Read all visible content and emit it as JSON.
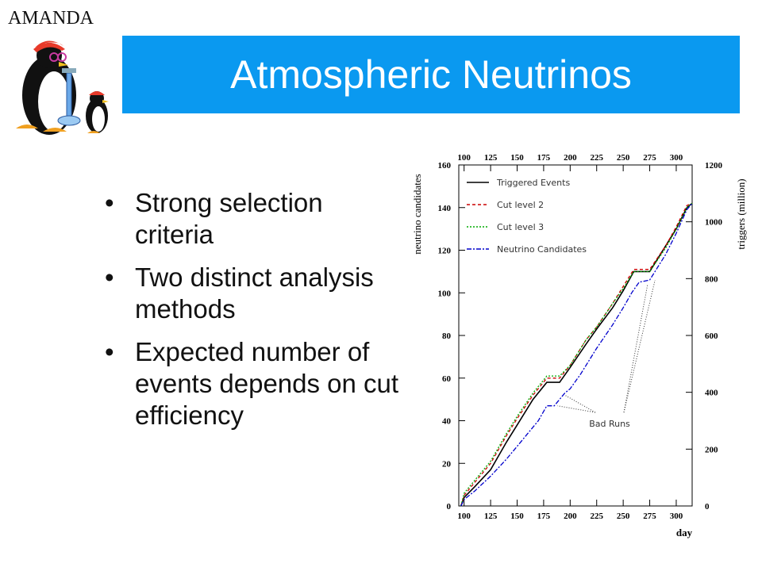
{
  "header": {
    "brand": "AMANDA",
    "title": "Atmospheric Neutrinos"
  },
  "bullets": [
    "Strong selection criteria",
    "Two distinct analysis methods",
    "Expected number of events depends on cut efficiency"
  ],
  "logo": {
    "icon": "penguin-scientist-icon"
  },
  "chart_data": {
    "type": "line",
    "xlabel": "day",
    "ylabel_left": "neutrino candidates",
    "ylabel_right": "triggers (million)",
    "xlim": [
      95,
      315
    ],
    "ylim_left": [
      0,
      160
    ],
    "ylim_right": [
      0,
      1200
    ],
    "x_ticks": [
      100,
      125,
      150,
      175,
      200,
      225,
      250,
      275,
      300
    ],
    "y_ticks_left": [
      0,
      20,
      40,
      60,
      80,
      100,
      120,
      140,
      160
    ],
    "y_ticks_right": [
      0,
      200,
      400,
      600,
      800,
      1000,
      1200
    ],
    "annotation": "Bad Runs",
    "legend_position": "top-left",
    "series": [
      {
        "name": "Triggered Events",
        "color": "#000000",
        "x": [
          97,
          100,
          110,
          125,
          140,
          150,
          165,
          178,
          185,
          190,
          200,
          215,
          225,
          240,
          250,
          260,
          263,
          275,
          290,
          300,
          310,
          315
        ],
        "y": [
          0,
          4,
          9,
          17,
          30,
          38,
          50,
          58,
          58,
          58,
          65,
          76,
          83,
          93,
          101,
          110,
          110,
          110,
          122,
          130,
          140,
          142
        ]
      },
      {
        "name": "Cut level 2",
        "color": "#cc0000",
        "x": [
          97,
          100,
          110,
          125,
          140,
          150,
          165,
          178,
          185,
          190,
          200,
          215,
          225,
          240,
          250,
          260,
          263,
          275,
          290,
          300,
          310,
          315
        ],
        "y": [
          0,
          5,
          11,
          20,
          33,
          41,
          52,
          60,
          60,
          60,
          66,
          78,
          84,
          95,
          103,
          111,
          111,
          111,
          122,
          131,
          141,
          142
        ]
      },
      {
        "name": "Cut level 3",
        "color": "#00aa00",
        "x": [
          97,
          100,
          110,
          125,
          140,
          150,
          165,
          178,
          185,
          190,
          200,
          215,
          225,
          240,
          250,
          260,
          263,
          275,
          290,
          300,
          310,
          315
        ],
        "y": [
          0,
          6,
          12,
          21,
          34,
          42,
          53,
          61,
          61,
          61,
          66,
          78,
          84,
          95,
          102,
          110,
          110,
          110,
          121,
          130,
          140,
          142
        ]
      },
      {
        "name": "Neutrino Candidates",
        "color": "#0000cc",
        "x": [
          97,
          100,
          110,
          125,
          140,
          150,
          160,
          170,
          178,
          185,
          190,
          195,
          200,
          210,
          225,
          240,
          250,
          258,
          265,
          275,
          290,
          300,
          310,
          315
        ],
        "y": [
          0,
          3,
          7,
          14,
          22,
          28,
          34,
          40,
          47,
          47,
          50,
          53,
          55,
          62,
          74,
          85,
          93,
          100,
          105,
          106,
          118,
          128,
          139,
          142
        ]
      }
    ]
  }
}
